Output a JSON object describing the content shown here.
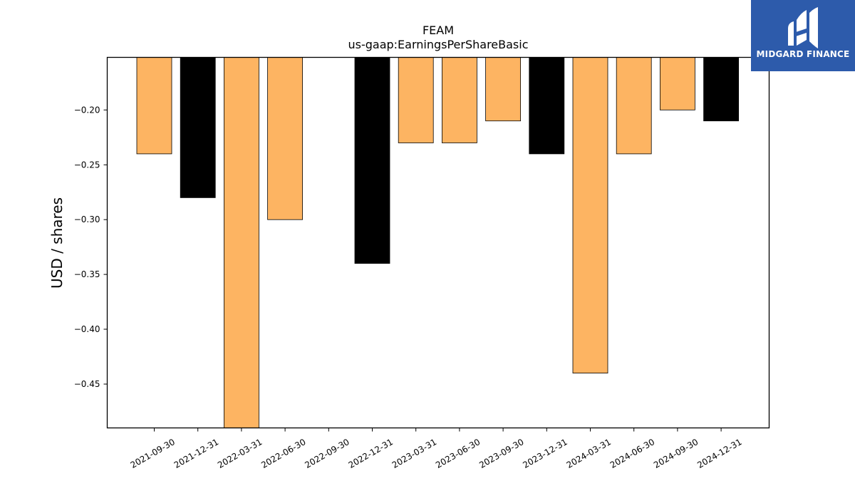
{
  "chart_data": {
    "type": "bar",
    "title": "FEAM",
    "subtitle": "us-gaap:EarningsPerShareBasic",
    "xlabel": "",
    "ylabel": "USD / shares",
    "categories": [
      "2021-09-30",
      "2021-12-31",
      "2022-03-31",
      "2022-06-30",
      "2022-09-30",
      "2022-12-31",
      "2023-03-31",
      "2023-06-30",
      "2023-09-30",
      "2023-12-31",
      "2024-03-31",
      "2024-06-30",
      "2024-09-30",
      "2024-12-31"
    ],
    "values": [
      -0.24,
      -0.28,
      -0.49,
      -0.3,
      null,
      -0.34,
      -0.23,
      -0.23,
      -0.21,
      -0.24,
      -0.44,
      -0.24,
      -0.2,
      -0.21
    ],
    "bar_colors": [
      "#fdb462",
      "#000000",
      "#fdb462",
      "#fdb462",
      "#fdb462",
      "#000000",
      "#fdb462",
      "#fdb462",
      "#fdb462",
      "#000000",
      "#fdb462",
      "#fdb462",
      "#fdb462",
      "#000000"
    ],
    "ylim": [
      -0.49,
      -0.152
    ],
    "yticks": [
      -0.2,
      -0.25,
      -0.3,
      -0.35,
      -0.4,
      -0.45
    ],
    "ytick_labels": [
      "−0.20",
      "−0.25",
      "−0.30",
      "−0.35",
      "−0.40",
      "−0.45"
    ],
    "grid": false,
    "legend": "none",
    "colors": {
      "orange": "#fdb462",
      "black": "#000000"
    }
  },
  "logo": {
    "text": "MIDGARD FINANCE",
    "background": "#2d5bab"
  }
}
